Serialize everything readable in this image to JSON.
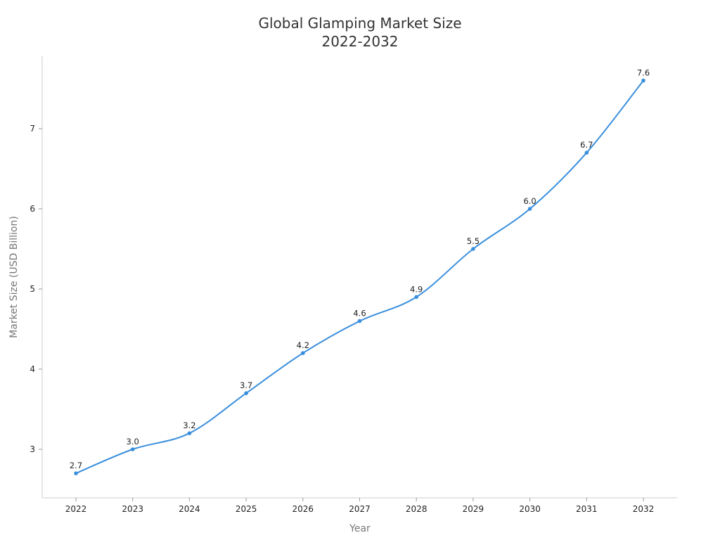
{
  "chart_data": {
    "type": "line",
    "title": "Global Glamping Market Size",
    "subtitle": "2022-2032",
    "xlabel": "Year",
    "ylabel": "Market Size (USD Billion)",
    "categories": [
      "2022",
      "2023",
      "2024",
      "2025",
      "2026",
      "2027",
      "2028",
      "2029",
      "2030",
      "2031",
      "2032"
    ],
    "series": [
      {
        "name": "Market Size",
        "values": [
          2.7,
          3.0,
          3.2,
          3.7,
          4.2,
          4.6,
          4.9,
          5.5,
          6.0,
          6.7,
          7.6
        ],
        "labels": [
          "2.7",
          "3.0",
          "3.2",
          "3.7",
          "4.2",
          "4.6",
          "4.9",
          "5.5",
          "6.0",
          "6.7",
          "7.6"
        ],
        "color": "#3a8fdd"
      }
    ],
    "yticks": [
      3,
      4,
      5,
      6,
      7
    ],
    "ylim": [
      2.4,
      7.9
    ],
    "grid": false,
    "legend": "none",
    "smooth": true
  }
}
